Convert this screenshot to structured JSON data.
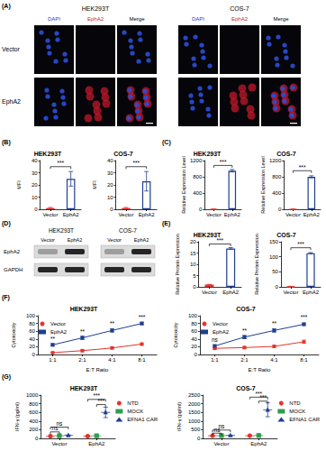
{
  "labels": {
    "A": "(A)",
    "B": "(B)",
    "C": "(C)",
    "D": "(D)",
    "E": "(E)",
    "F": "(F)",
    "G": "(G)"
  },
  "microscopy": {
    "cell_lines": [
      "HEK293T",
      "COS-7"
    ],
    "channels": [
      "DAPI",
      "EphA2",
      "Merge"
    ],
    "rows": [
      "Vector",
      "EphA2"
    ]
  },
  "western_blot": {
    "cell_lines": [
      "HEK293T",
      "COS-7"
    ],
    "lanes": [
      "Vector",
      "EphA2"
    ],
    "bands": [
      "EphA2",
      "GAPDH"
    ]
  },
  "chart_data": [
    {
      "type": "bar",
      "title": "HEK293T",
      "y_label": "MFI",
      "categories": [
        "Vector",
        "EphA2"
      ],
      "values": [
        1,
        25
      ],
      "errors": [
        0.5,
        6
      ],
      "colors": [
        "#e3342f",
        "#1f3f8f"
      ],
      "ylim": [
        0,
        40
      ],
      "yticks": [
        0,
        10,
        20,
        30,
        40
      ],
      "grid": false,
      "annotations": [
        {
          "from": "Vector",
          "to": "EphA2",
          "y": 35,
          "text": "***"
        }
      ]
    },
    {
      "type": "bar",
      "title": "COS-7",
      "y_label": "MFI",
      "categories": [
        "Vector",
        "EphA2"
      ],
      "values": [
        1,
        23
      ],
      "errors": [
        0.5,
        8
      ],
      "colors": [
        "#e3342f",
        "#1f3f8f"
      ],
      "ylim": [
        0,
        40
      ],
      "yticks": [
        0,
        10,
        20,
        30,
        40
      ],
      "grid": false,
      "annotations": [
        {
          "from": "Vector",
          "to": "EphA2",
          "y": 35,
          "text": "***"
        }
      ]
    },
    {
      "type": "bar",
      "title": "HEK293T",
      "y_label": "Relative Expression Level",
      "categories": [
        "Vector",
        "EphA2"
      ],
      "values": [
        1,
        950
      ],
      "errors": [
        2,
        30
      ],
      "colors": [
        "#e3342f",
        "#1f3f8f"
      ],
      "ylim": [
        0,
        1200
      ],
      "yticks": [
        0,
        400,
        800,
        1200
      ],
      "grid": false,
      "annotations": [
        {
          "from": "Vector",
          "to": "EphA2",
          "y": 1080,
          "text": "***"
        }
      ]
    },
    {
      "type": "bar",
      "title": "COS-7",
      "y_label": "Relative Expression Level",
      "categories": [
        "Vector",
        "EphA2"
      ],
      "values": [
        1,
        800
      ],
      "errors": [
        2,
        25
      ],
      "colors": [
        "#e3342f",
        "#1f3f8f"
      ],
      "ylim": [
        0,
        1200
      ],
      "yticks": [
        0,
        400,
        800,
        1200
      ],
      "grid": false,
      "annotations": [
        {
          "from": "Vector",
          "to": "EphA2",
          "y": 950,
          "text": "***"
        }
      ]
    },
    {
      "type": "bar",
      "title": "HEK293T",
      "y_label": "Relative Protein Expression",
      "categories": [
        "Vector",
        "EphA2"
      ],
      "values": [
        1,
        17
      ],
      "errors": [
        0.1,
        0.4
      ],
      "colors": [
        "#e3342f",
        "#1f3f8f"
      ],
      "ylim": [
        0,
        20
      ],
      "yticks": [
        0,
        5,
        10,
        15,
        20
      ],
      "grid": false,
      "annotations": [
        {
          "from": "Vector",
          "to": "EphA2",
          "y": 19,
          "text": "***"
        }
      ]
    },
    {
      "type": "bar",
      "title": "COS-7",
      "y_label": "Relative Protein Expression",
      "categories": [
        "Vector",
        "EphA2"
      ],
      "values": [
        1,
        112
      ],
      "errors": [
        1,
        2
      ],
      "colors": [
        "#e3342f",
        "#1f3f8f"
      ],
      "ylim": [
        0,
        150
      ],
      "yticks": [
        0,
        50,
        100,
        150
      ],
      "grid": false,
      "annotations": [
        {
          "from": "Vector",
          "to": "EphA2",
          "y": 130,
          "text": "***"
        }
      ]
    },
    {
      "type": "line",
      "title": "HEK293T",
      "x_label": "E:T Ratio",
      "y_label": "Cytotoxicity",
      "categories": [
        "1:1",
        "2:1",
        "4:1",
        "8:1"
      ],
      "series": [
        {
          "name": "Vector",
          "color": "#e3342f",
          "marker": "circle",
          "values": [
            5,
            10,
            17,
            27
          ],
          "errors": [
            2,
            3,
            3,
            3
          ]
        },
        {
          "name": "EphA2",
          "color": "#1f3f8f",
          "marker": "rect",
          "values": [
            25,
            43,
            62,
            80
          ],
          "errors": [
            3,
            4,
            4,
            3
          ]
        }
      ],
      "ylim": [
        0,
        100
      ],
      "yticks": [
        0,
        20,
        40,
        60,
        80,
        100
      ],
      "grid": false,
      "legend": "upper left",
      "annotations": [
        {
          "x": "1:1",
          "y": 33,
          "text": "**"
        },
        {
          "x": "2:1",
          "y": 52,
          "text": "**"
        },
        {
          "x": "4:1",
          "y": 71,
          "text": "**"
        },
        {
          "x": "8:1",
          "y": 88,
          "text": "***"
        }
      ]
    },
    {
      "type": "line",
      "title": "COS-7",
      "x_label": "E:T Ratio",
      "y_label": "Cytotoxicity",
      "categories": [
        "1:1",
        "2:1",
        "4:1",
        "8:1"
      ],
      "series": [
        {
          "name": "Vector",
          "color": "#e3342f",
          "marker": "circle",
          "values": [
            16,
            18,
            21,
            33
          ],
          "errors": [
            3,
            3,
            3,
            4
          ]
        },
        {
          "name": "EphA2",
          "color": "#1f3f8f",
          "marker": "rect",
          "values": [
            22,
            45,
            62,
            78
          ],
          "errors": [
            3,
            4,
            4,
            3
          ]
        }
      ],
      "ylim": [
        0,
        100
      ],
      "yticks": [
        0,
        20,
        40,
        60,
        80,
        100
      ],
      "grid": false,
      "legend": "upper left",
      "annotations": [
        {
          "x": "1:1",
          "y": 30,
          "text": "ns"
        },
        {
          "x": "2:1",
          "y": 54,
          "text": "**"
        },
        {
          "x": "4:1",
          "y": 71,
          "text": "**"
        },
        {
          "x": "8:1",
          "y": 88,
          "text": "***"
        }
      ]
    },
    {
      "type": "scatter",
      "title": "HEK293T",
      "y_label": "IFN-γ (pg/ml)",
      "categories": [
        "Vector",
        "EphA2"
      ],
      "series": [
        {
          "name": "NTD",
          "color": "#e3342f",
          "marker": "circle",
          "values": [
            50,
            50
          ],
          "errors": [
            10,
            10
          ]
        },
        {
          "name": "MOCK",
          "color": "#2e9e4f",
          "marker": "rect",
          "values": [
            60,
            60
          ],
          "errors": [
            10,
            10
          ]
        },
        {
          "name": "EFNA1 CAR",
          "color": "#1f3f8f",
          "marker": "triangle",
          "values": [
            70,
            600
          ],
          "errors": [
            10,
            120
          ]
        }
      ],
      "ylim": [
        0,
        1000
      ],
      "yticks": [
        0,
        200,
        400,
        600,
        800,
        1000
      ],
      "grid": false,
      "legend": "upper right",
      "annotations": [
        {
          "category": "Vector",
          "from": "NTD",
          "to": "MOCK",
          "y": 150,
          "text": "ns"
        },
        {
          "category": "Vector",
          "from": "NTD",
          "to": "EFNA1 CAR",
          "y": 260,
          "text": "ns"
        },
        {
          "category": "EphA2",
          "from": "MOCK",
          "to": "EFNA1 CAR",
          "y": 780,
          "text": "***"
        },
        {
          "category": "EphA2",
          "from": "NTD",
          "to": "EFNA1 CAR",
          "y": 900,
          "text": "***"
        }
      ]
    },
    {
      "type": "scatter",
      "title": "COS-7",
      "y_label": "IFN-γ (pg/ml)",
      "categories": [
        "Vector",
        "EphA2"
      ],
      "series": [
        {
          "name": "NTD",
          "color": "#e3342f",
          "marker": "circle",
          "values": [
            150,
            150
          ],
          "errors": [
            20,
            20
          ]
        },
        {
          "name": "MOCK",
          "color": "#2e9e4f",
          "marker": "rect",
          "values": [
            160,
            170
          ],
          "errors": [
            20,
            20
          ]
        },
        {
          "name": "EFNA1 CAR",
          "color": "#1f3f8f",
          "marker": "triangle",
          "values": [
            170,
            1650
          ],
          "errors": [
            20,
            400
          ]
        }
      ],
      "ylim": [
        0,
        2500
      ],
      "yticks": [
        0,
        500,
        1000,
        1500,
        2000,
        2500
      ],
      "grid": false,
      "legend": "upper right",
      "annotations": [
        {
          "category": "Vector",
          "from": "NTD",
          "to": "MOCK",
          "y": 300,
          "text": "ns"
        },
        {
          "category": "Vector",
          "from": "NTD",
          "to": "EFNA1 CAR",
          "y": 480,
          "text": "ns"
        },
        {
          "category": "EphA2",
          "from": "MOCK",
          "to": "EFNA1 CAR",
          "y": 2150,
          "text": "***"
        },
        {
          "category": "EphA2",
          "from": "NTD",
          "to": "EFNA1 CAR",
          "y": 2380,
          "text": "***"
        }
      ]
    }
  ]
}
